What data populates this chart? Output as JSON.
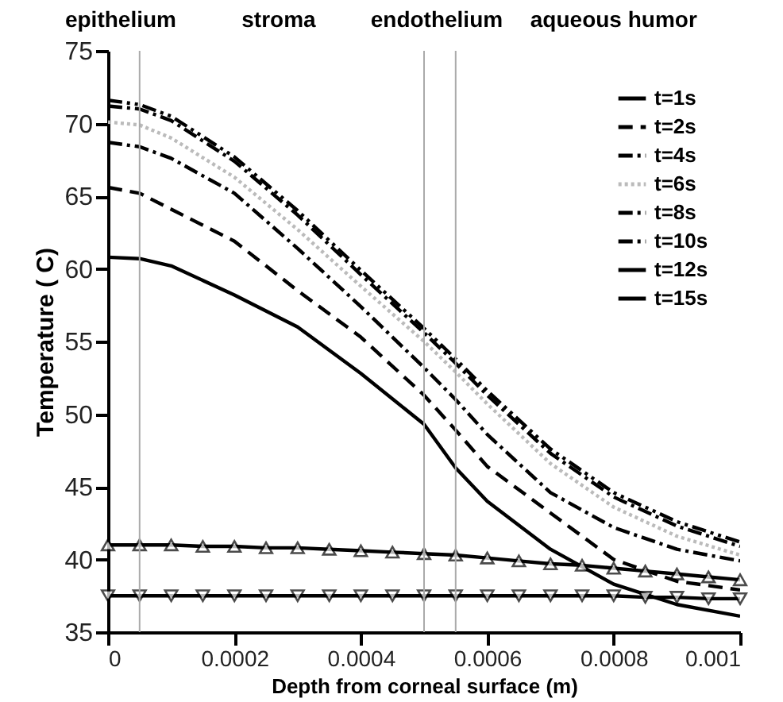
{
  "chart_data": {
    "type": "line",
    "xlabel": "Depth from corneal surface (m)",
    "ylabel": "Temperature ( C)",
    "x": [
      0,
      5e-05,
      0.0001,
      0.0002,
      0.0003,
      0.0004,
      0.0005,
      0.00055,
      0.0006,
      0.0007,
      0.0008,
      0.0009,
      0.001
    ],
    "series": [
      {
        "name": "t=1s",
        "color": "#000000",
        "line_style": "solid",
        "values": [
          60.8,
          60.7,
          60.2,
          58.2,
          56.0,
          52.8,
          49.3,
          46.3,
          44.0,
          40.7,
          38.3,
          36.9,
          36.1
        ]
      },
      {
        "name": "t=2s",
        "color": "#000000",
        "line_style": "dashed",
        "values": [
          65.6,
          65.2,
          64.1,
          61.9,
          58.5,
          55.3,
          51.3,
          48.9,
          46.4,
          43.2,
          40.0,
          38.5,
          37.9
        ]
      },
      {
        "name": "t=4s",
        "color": "#000000",
        "line_style": "dashdot",
        "values": [
          68.7,
          68.4,
          67.6,
          65.2,
          61.4,
          57.4,
          53.2,
          51.0,
          48.6,
          44.6,
          42.2,
          40.7,
          39.9
        ]
      },
      {
        "name": "t=6s",
        "color": "#bbbbbb",
        "line_style": "dotted",
        "values": [
          70.1,
          69.9,
          69.0,
          66.3,
          62.7,
          58.8,
          55.0,
          52.9,
          50.7,
          46.6,
          43.6,
          41.6,
          40.3
        ]
      },
      {
        "name": "t=8s",
        "color": "#000000",
        "line_style": "dashdot",
        "values": [
          71.2,
          71.0,
          70.2,
          67.4,
          63.7,
          59.6,
          55.6,
          53.5,
          51.3,
          47.3,
          44.3,
          42.3,
          40.9
        ]
      },
      {
        "name": "t=10s",
        "color": "#000000",
        "line_style": "dashdotdot",
        "values": [
          71.6,
          71.3,
          70.5,
          67.7,
          64.0,
          59.9,
          55.9,
          53.8,
          51.6,
          47.6,
          44.6,
          42.6,
          41.2
        ]
      },
      {
        "name": "t=12s",
        "color": "#000000",
        "line_style": "solid",
        "marker": "triangle",
        "x": [
          0,
          5e-05,
          0.0001,
          0.00015,
          0.0002,
          0.00025,
          0.0003,
          0.00035,
          0.0004,
          0.00045,
          0.0005,
          0.00055,
          0.0006,
          0.00065,
          0.0007,
          0.00075,
          0.0008,
          0.00085,
          0.0009,
          0.00095,
          0.001
        ],
        "values": [
          41.0,
          41.0,
          41.0,
          40.9,
          40.9,
          40.8,
          40.8,
          40.7,
          40.6,
          40.5,
          40.4,
          40.3,
          40.1,
          39.9,
          39.7,
          39.6,
          39.4,
          39.2,
          39.0,
          38.8,
          38.6
        ]
      },
      {
        "name": "t=15s",
        "color": "#000000",
        "line_style": "solid",
        "marker": "triangle_down",
        "x": [
          0,
          5e-05,
          0.0001,
          0.00015,
          0.0002,
          0.00025,
          0.0003,
          0.00035,
          0.0004,
          0.00045,
          0.0005,
          0.00055,
          0.0006,
          0.00065,
          0.0007,
          0.00075,
          0.0008,
          0.00085,
          0.0009,
          0.00095,
          0.001
        ],
        "values": [
          37.5,
          37.5,
          37.5,
          37.5,
          37.5,
          37.5,
          37.5,
          37.5,
          37.5,
          37.5,
          37.5,
          37.5,
          37.5,
          37.5,
          37.5,
          37.5,
          37.5,
          37.4,
          37.4,
          37.3,
          37.3
        ]
      }
    ],
    "xlim": [
      0,
      0.001
    ],
    "xticks": [
      0,
      0.0002,
      0.0004,
      0.0006,
      0.0008,
      0.001
    ],
    "ylim": [
      35,
      75
    ],
    "yticks": [
      35,
      40,
      45,
      50,
      55,
      60,
      65,
      70,
      75
    ],
    "ref_lines": [
      {
        "axis": "x",
        "value": 5e-05,
        "color": "#aaaaaa"
      },
      {
        "axis": "x",
        "value": 0.0005,
        "color": "#aaaaaa"
      },
      {
        "axis": "x",
        "value": 0.00055,
        "color": "#aaaaaa"
      }
    ],
    "annotations": [
      "epithelium",
      "stroma",
      "endothelium",
      "aqueous humor"
    ],
    "grid": false,
    "legend": "top right"
  }
}
